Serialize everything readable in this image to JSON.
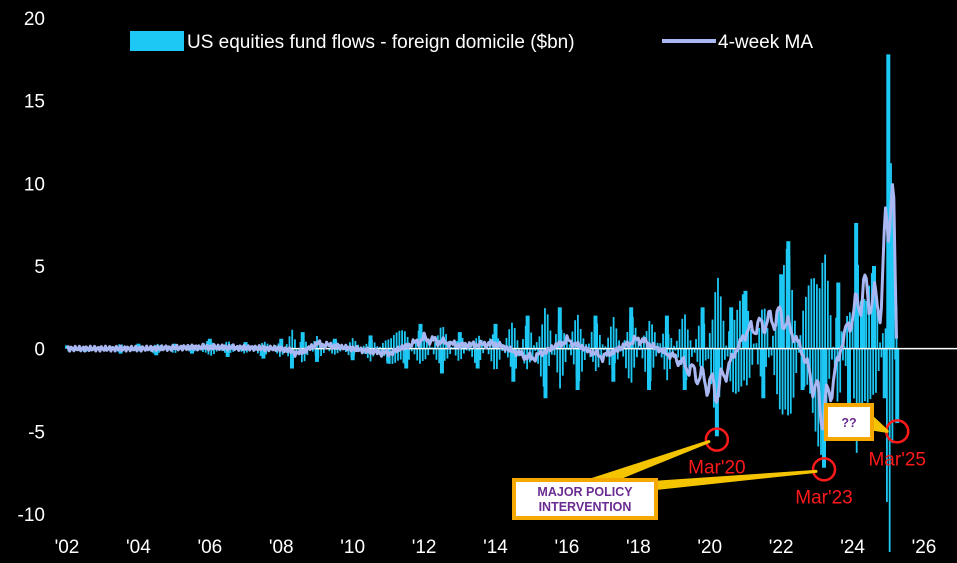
{
  "chart_data": {
    "type": "bar",
    "title": "",
    "xlabel": "",
    "ylabel": "",
    "ylim": [
      -10,
      20
    ],
    "xlim": [
      2002,
      2026.2
    ],
    "grid": false,
    "legend_position": "top",
    "yticks": [
      "-10",
      "-5",
      "0",
      "5",
      "10",
      "15",
      "20"
    ],
    "xticks": [
      "'02",
      "'04",
      "'06",
      "'08",
      "'10",
      "'12",
      "'14",
      "'16",
      "'18",
      "'20",
      "'22",
      "'24",
      "'26"
    ],
    "series": [
      {
        "name": "US equities fund flows - foreign domicile ($bn)",
        "kind": "weekly-bars",
        "color": "#1ec8f5",
        "points": [
          [
            2002.0,
            0.2
          ],
          [
            2002.5,
            -0.2
          ],
          [
            2003.0,
            0.1
          ],
          [
            2003.5,
            -0.3
          ],
          [
            2004.0,
            0.3
          ],
          [
            2004.5,
            -0.4
          ],
          [
            2005.0,
            0.3
          ],
          [
            2005.5,
            -0.3
          ],
          [
            2006.0,
            0.6
          ],
          [
            2006.5,
            -0.5
          ],
          [
            2007.0,
            0.4
          ],
          [
            2007.5,
            -0.6
          ],
          [
            2008.0,
            0.6
          ],
          [
            2008.3,
            -1.2
          ],
          [
            2008.6,
            1.0
          ],
          [
            2009.0,
            -0.8
          ],
          [
            2009.5,
            0.6
          ],
          [
            2010.0,
            -0.7
          ],
          [
            2010.5,
            0.8
          ],
          [
            2011.0,
            -0.9
          ],
          [
            2011.5,
            -1.2
          ],
          [
            2011.9,
            1.5
          ],
          [
            2012.5,
            -1.5
          ],
          [
            2013.0,
            1.0
          ],
          [
            2013.5,
            -1.2
          ],
          [
            2014.0,
            1.5
          ],
          [
            2014.5,
            -2.0
          ],
          [
            2014.9,
            2.0
          ],
          [
            2015.4,
            -3.0
          ],
          [
            2015.8,
            2.5
          ],
          [
            2016.3,
            -2.5
          ],
          [
            2016.8,
            2.0
          ],
          [
            2017.3,
            -2.0
          ],
          [
            2017.8,
            2.5
          ],
          [
            2018.3,
            -2.5
          ],
          [
            2018.8,
            2.0
          ],
          [
            2019.3,
            -2.5
          ],
          [
            2019.8,
            2.5
          ],
          [
            2020.2,
            -5.3
          ],
          [
            2020.6,
            2.5
          ],
          [
            2021.0,
            3.5
          ],
          [
            2021.5,
            -3.0
          ],
          [
            2022.0,
            4.5
          ],
          [
            2022.2,
            6.5
          ],
          [
            2022.6,
            -2.5
          ],
          [
            2023.2,
            -7.2
          ],
          [
            2023.6,
            4.0
          ],
          [
            2023.9,
            -3.5
          ],
          [
            2024.1,
            7.6
          ],
          [
            2024.3,
            3.0
          ],
          [
            2024.6,
            5.0
          ],
          [
            2024.9,
            -3.0
          ],
          [
            2025.0,
            17.8
          ],
          [
            2025.1,
            10.0
          ],
          [
            2025.25,
            -4.5
          ]
        ]
      },
      {
        "name": "4-week MA",
        "kind": "line",
        "color": "#a9b8f2",
        "points": [
          [
            2002.0,
            0.0
          ],
          [
            2004.0,
            0.0
          ],
          [
            2006.0,
            0.1
          ],
          [
            2008.0,
            0.0
          ],
          [
            2008.5,
            -0.3
          ],
          [
            2009.0,
            0.3
          ],
          [
            2010.0,
            0.0
          ],
          [
            2011.0,
            -0.3
          ],
          [
            2012.0,
            0.6
          ],
          [
            2013.0,
            0.2
          ],
          [
            2014.0,
            0.3
          ],
          [
            2015.0,
            -0.6
          ],
          [
            2016.0,
            0.5
          ],
          [
            2017.0,
            -0.5
          ],
          [
            2018.0,
            0.6
          ],
          [
            2019.0,
            -0.5
          ],
          [
            2020.2,
            -2.5
          ],
          [
            2021.0,
            1.0
          ],
          [
            2022.0,
            2.0
          ],
          [
            2022.5,
            0.3
          ],
          [
            2023.2,
            -4.0
          ],
          [
            2023.8,
            1.0
          ],
          [
            2024.3,
            3.5
          ],
          [
            2024.8,
            2.5
          ],
          [
            2025.05,
            11.0
          ],
          [
            2025.15,
            7.0
          ],
          [
            2025.25,
            -1.0
          ]
        ]
      }
    ],
    "annotations": [
      {
        "label": "Mar'20",
        "x": 2020.2,
        "y": -5.5
      },
      {
        "label": "Mar'23",
        "x": 2023.2,
        "y": -7.3
      },
      {
        "label": "Mar'25",
        "x": 2025.25,
        "y": -5.0
      }
    ],
    "callouts": [
      {
        "text_lines": [
          "MAJOR POLICY",
          "INTERVENTION"
        ],
        "points_to": [
          "Mar'20",
          "Mar'23"
        ]
      },
      {
        "text_lines": [
          "??"
        ],
        "points_to": [
          "Mar'25"
        ]
      }
    ]
  }
}
